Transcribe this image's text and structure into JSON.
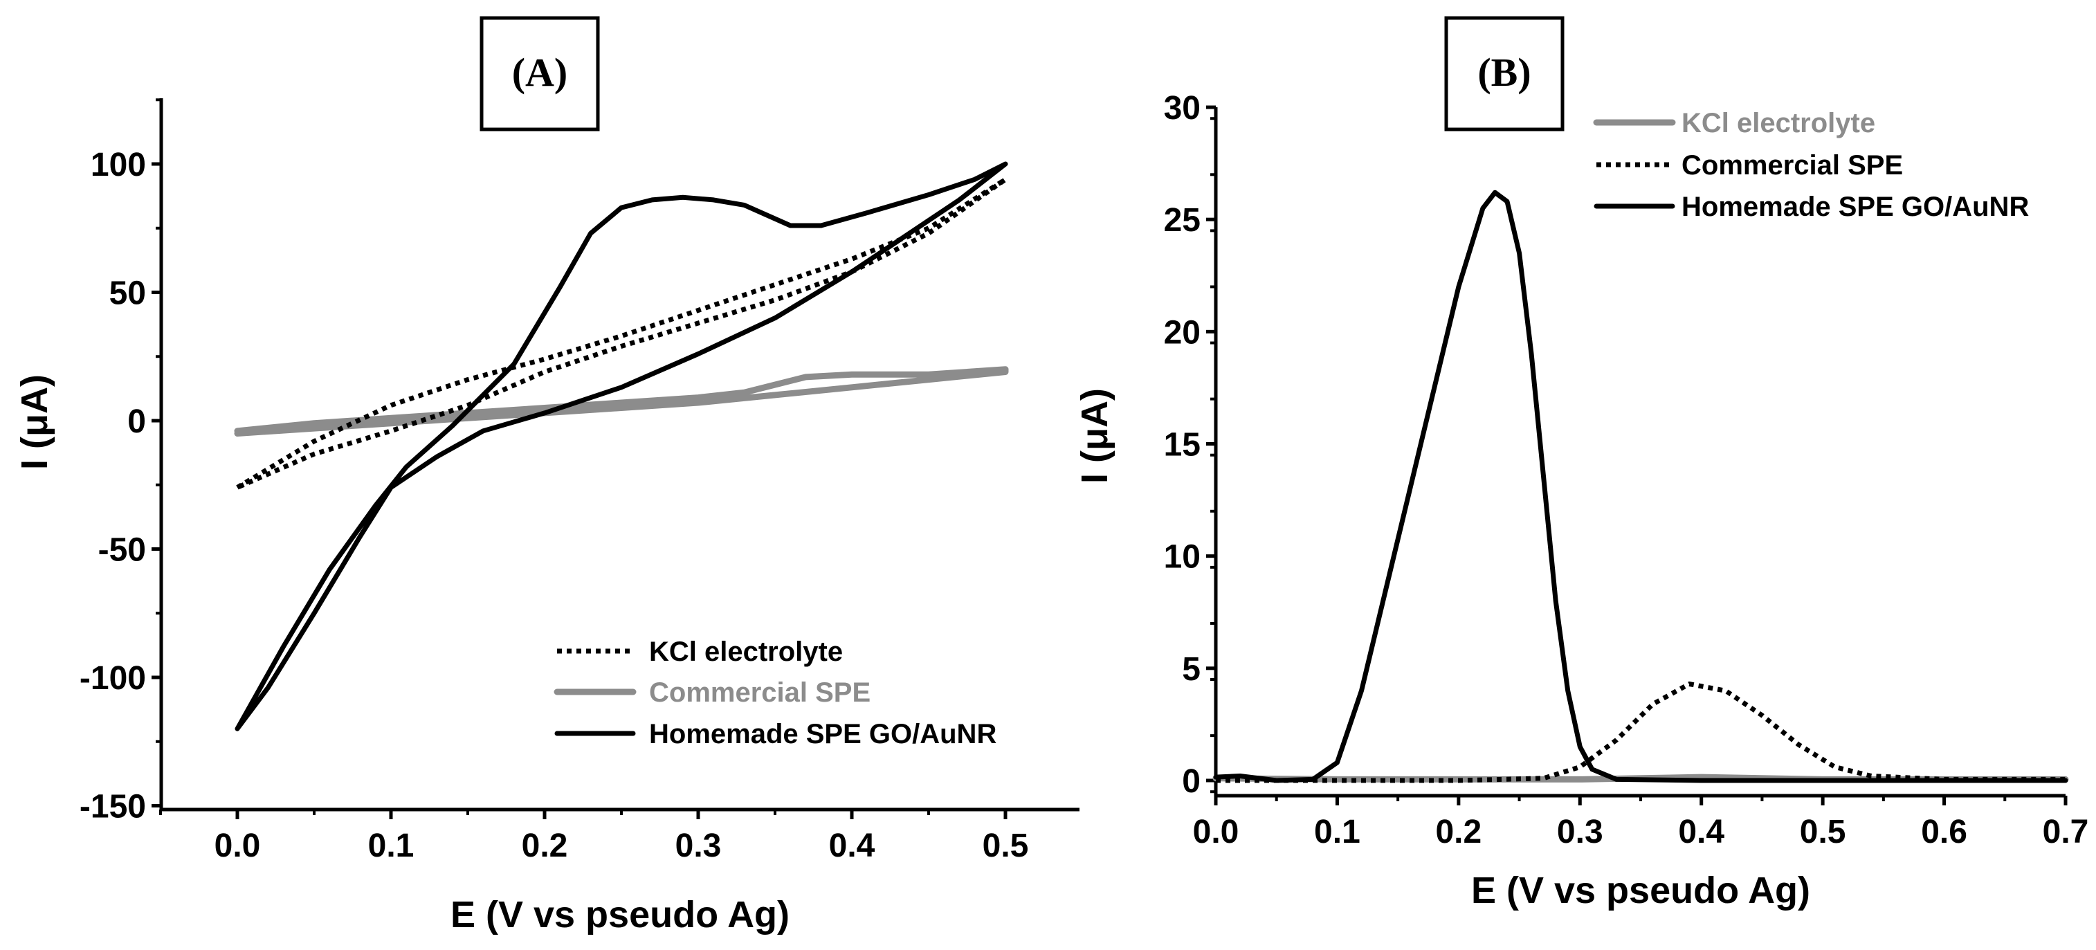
{
  "chart_data": [
    {
      "type": "line",
      "panel_label": "(A)",
      "xlabel": "E (V vs pseudo Ag)",
      "ylabel": "I (μA)",
      "xlim": [
        -0.05,
        0.55
      ],
      "ylim": [
        -150,
        125
      ],
      "xticks": [
        0.0,
        0.1,
        0.2,
        0.3,
        0.4,
        0.5
      ],
      "xtick_labels": [
        "0.0",
        "0.1",
        "0.2",
        "0.3",
        "0.4",
        "0.5"
      ],
      "yticks": [
        -150,
        -100,
        -50,
        0,
        50,
        100
      ],
      "ytick_labels": [
        "-150",
        "-100",
        "-50",
        "0",
        "50",
        "100"
      ],
      "legend_position": "bottom-right",
      "series": [
        {
          "name": "KCl electrolyte",
          "style": "dotted",
          "color": "#000000",
          "points": [
            [
              0.0,
              -26
            ],
            [
              0.05,
              -8
            ],
            [
              0.1,
              6
            ],
            [
              0.15,
              16
            ],
            [
              0.2,
              24
            ],
            [
              0.25,
              33
            ],
            [
              0.3,
              43
            ],
            [
              0.35,
              53
            ],
            [
              0.4,
              63
            ],
            [
              0.45,
              75
            ],
            [
              0.5,
              94
            ],
            [
              0.5,
              94
            ],
            [
              0.45,
              73
            ],
            [
              0.4,
              58
            ],
            [
              0.35,
              47
            ],
            [
              0.3,
              38
            ],
            [
              0.25,
              29
            ],
            [
              0.2,
              19
            ],
            [
              0.15,
              6
            ],
            [
              0.1,
              -4
            ],
            [
              0.05,
              -13
            ],
            [
              0.0,
              -26
            ]
          ]
        },
        {
          "name": "Commercial SPE",
          "style": "solid",
          "color": "#8c8c8c",
          "points": [
            [
              0.0,
              -4
            ],
            [
              0.05,
              -1
            ],
            [
              0.1,
              1
            ],
            [
              0.15,
              3
            ],
            [
              0.2,
              5
            ],
            [
              0.25,
              7
            ],
            [
              0.3,
              9
            ],
            [
              0.33,
              11
            ],
            [
              0.37,
              17
            ],
            [
              0.4,
              18
            ],
            [
              0.45,
              18
            ],
            [
              0.5,
              20
            ],
            [
              0.5,
              19
            ],
            [
              0.45,
              16
            ],
            [
              0.4,
              13
            ],
            [
              0.35,
              10
            ],
            [
              0.3,
              7
            ],
            [
              0.25,
              5
            ],
            [
              0.2,
              3
            ],
            [
              0.15,
              1
            ],
            [
              0.1,
              -1
            ],
            [
              0.05,
              -3
            ],
            [
              0.0,
              -5
            ]
          ]
        },
        {
          "name": "Homemade SPE GO/AuNR",
          "style": "solid",
          "color": "#000000",
          "points": [
            [
              0.0,
              -120
            ],
            [
              0.03,
              -88
            ],
            [
              0.06,
              -58
            ],
            [
              0.09,
              -33
            ],
            [
              0.11,
              -18
            ],
            [
              0.14,
              -2
            ],
            [
              0.18,
              22
            ],
            [
              0.21,
              52
            ],
            [
              0.23,
              73
            ],
            [
              0.25,
              83
            ],
            [
              0.27,
              86
            ],
            [
              0.29,
              87
            ],
            [
              0.31,
              86
            ],
            [
              0.33,
              84
            ],
            [
              0.36,
              76
            ],
            [
              0.38,
              76
            ],
            [
              0.41,
              81
            ],
            [
              0.45,
              88
            ],
            [
              0.48,
              94
            ],
            [
              0.5,
              100
            ],
            [
              0.47,
              86
            ],
            [
              0.43,
              70
            ],
            [
              0.4,
              58
            ],
            [
              0.35,
              40
            ],
            [
              0.3,
              26
            ],
            [
              0.25,
              13
            ],
            [
              0.2,
              3
            ],
            [
              0.16,
              -4
            ],
            [
              0.13,
              -14
            ],
            [
              0.1,
              -26
            ],
            [
              0.08,
              -45
            ],
            [
              0.05,
              -75
            ],
            [
              0.02,
              -104
            ],
            [
              0.0,
              -120
            ]
          ]
        }
      ],
      "legend": [
        {
          "label": "KCl electrolyte",
          "style": "dotted",
          "color": "#000000"
        },
        {
          "label": "Commercial SPE",
          "style": "solid",
          "color": "#8c8c8c"
        },
        {
          "label": "Homemade SPE GO/AuNR",
          "style": "solid",
          "color": "#000000"
        }
      ]
    },
    {
      "type": "line",
      "panel_label": "(B)",
      "xlabel": "E (V vs pseudo Ag)",
      "ylabel": "I (μA)",
      "xlim": [
        0.0,
        0.7
      ],
      "ylim": [
        -0.5,
        30
      ],
      "xticks": [
        0.0,
        0.1,
        0.2,
        0.3,
        0.4,
        0.5,
        0.6,
        0.7
      ],
      "xtick_labels": [
        "0.0",
        "0.1",
        "0.2",
        "0.3",
        "0.4",
        "0.5",
        "0.6",
        "0.7"
      ],
      "yticks": [
        0,
        5,
        10,
        15,
        20,
        25,
        30
      ],
      "ytick_labels": [
        "0",
        "5",
        "10",
        "15",
        "20",
        "25",
        "30"
      ],
      "legend_position": "top-right",
      "series": [
        {
          "name": "KCl electrolyte",
          "style": "solid",
          "color": "#8c8c8c",
          "points": [
            [
              0.0,
              0.1
            ],
            [
              0.1,
              0.05
            ],
            [
              0.2,
              0.05
            ],
            [
              0.3,
              0.05
            ],
            [
              0.35,
              0.1
            ],
            [
              0.4,
              0.15
            ],
            [
              0.5,
              0.05
            ],
            [
              0.6,
              0.05
            ],
            [
              0.7,
              0.05
            ]
          ]
        },
        {
          "name": "Commercial SPE",
          "style": "dotted",
          "color": "#000000",
          "points": [
            [
              0.0,
              0.0
            ],
            [
              0.1,
              0.0
            ],
            [
              0.2,
              0.0
            ],
            [
              0.27,
              0.1
            ],
            [
              0.3,
              0.6
            ],
            [
              0.33,
              1.8
            ],
            [
              0.36,
              3.4
            ],
            [
              0.39,
              4.3
            ],
            [
              0.42,
              4.0
            ],
            [
              0.45,
              2.9
            ],
            [
              0.48,
              1.6
            ],
            [
              0.51,
              0.6
            ],
            [
              0.54,
              0.2
            ],
            [
              0.6,
              0.05
            ],
            [
              0.7,
              0.05
            ]
          ]
        },
        {
          "name": "Homemade SPE GO/AuNR",
          "style": "solid",
          "color": "#000000",
          "points": [
            [
              0.0,
              0.15
            ],
            [
              0.02,
              0.2
            ],
            [
              0.05,
              0.0
            ],
            [
              0.08,
              0.05
            ],
            [
              0.1,
              0.8
            ],
            [
              0.12,
              4.0
            ],
            [
              0.14,
              8.5
            ],
            [
              0.16,
              13.0
            ],
            [
              0.18,
              17.5
            ],
            [
              0.2,
              22.0
            ],
            [
              0.22,
              25.5
            ],
            [
              0.23,
              26.2
            ],
            [
              0.24,
              25.8
            ],
            [
              0.25,
              23.5
            ],
            [
              0.26,
              19.0
            ],
            [
              0.27,
              13.5
            ],
            [
              0.28,
              8.0
            ],
            [
              0.29,
              4.0
            ],
            [
              0.3,
              1.5
            ],
            [
              0.31,
              0.5
            ],
            [
              0.33,
              0.05
            ],
            [
              0.4,
              0.0
            ],
            [
              0.5,
              0.0
            ],
            [
              0.6,
              0.0
            ],
            [
              0.7,
              0.0
            ]
          ]
        }
      ],
      "legend": [
        {
          "label": "KCl electrolyte",
          "style": "solid",
          "color": "#8c8c8c"
        },
        {
          "label": "Commercial SPE",
          "style": "dotted",
          "color": "#000000"
        },
        {
          "label": "Homemade SPE GO/AuNR",
          "style": "solid",
          "color": "#000000"
        }
      ]
    }
  ]
}
